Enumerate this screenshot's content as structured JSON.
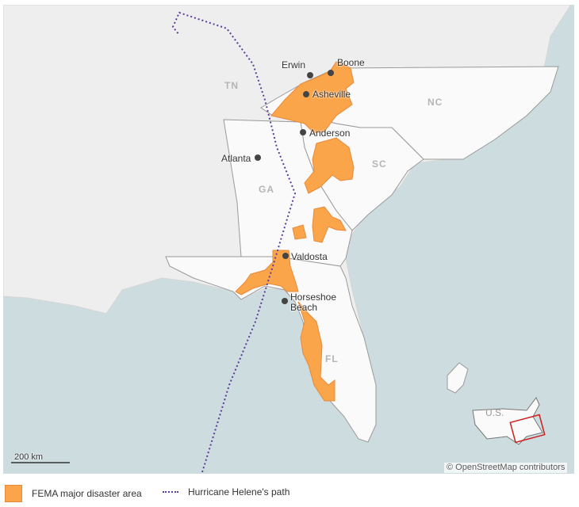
{
  "map": {
    "state_labels": [
      "TN",
      "NC",
      "SC",
      "GA",
      "FL"
    ],
    "cities": [
      "Erwin",
      "Boone",
      "Asheville",
      "Anderson",
      "Atlanta",
      "Valdosta",
      "Horseshoe Beach"
    ],
    "inset_label": "U.S.",
    "scale": "200 km",
    "attribution": "© OpenStreetMap contributors"
  },
  "legend": [
    {
      "label": "FEMA major disaster area"
    },
    {
      "label": "Hurricane Helene's path"
    }
  ]
}
